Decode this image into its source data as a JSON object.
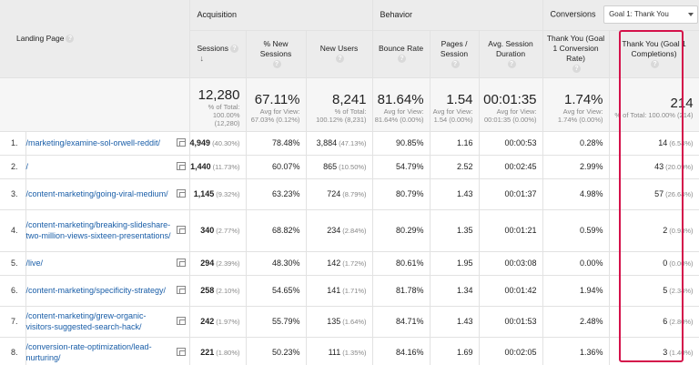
{
  "headers": {
    "landing_page": "Landing Page",
    "acquisition": "Acquisition",
    "behavior": "Behavior",
    "conversions": "Conversions",
    "goal_select": "Goal 1: Thank You",
    "sessions": "Sessions",
    "new_sessions": "% New Sessions",
    "new_users": "New Users",
    "bounce_rate": "Bounce Rate",
    "pages_session": "Pages / Session",
    "avg_duration": "Avg. Session Duration",
    "conv_rate": "Thank You (Goal 1 Conversion Rate)",
    "completions": "Thank You (Goal 1 Completions)"
  },
  "totals": {
    "sessions": "12,280",
    "sessions_sub": "% of Total: 100.00% (12,280)",
    "new_sessions": "67.11%",
    "new_sessions_sub": "Avg for View: 67.03% (0.12%)",
    "new_users": "8,241",
    "new_users_sub": "% of Total: 100.12% (8,231)",
    "bounce_rate": "81.64%",
    "bounce_rate_sub": "Avg for View: 81.64% (0.00%)",
    "pages_session": "1.54",
    "pages_session_sub": "Avg for View: 1.54 (0.00%)",
    "avg_duration": "00:01:35",
    "avg_duration_sub": "Avg for View: 00:01:35 (0.00%)",
    "conv_rate": "1.74%",
    "conv_rate_sub": "Avg for View: 1.74% (0.00%)",
    "completions": "214",
    "completions_sub": "% of Total: 100.00% (214)"
  },
  "rows": [
    {
      "idx": "1.",
      "page": "/marketing/examine-sol-orwell-reddit/",
      "sessions": "4,949",
      "sessions_pct": "(40.30%)",
      "new_sessions": "78.48%",
      "new_users": "3,884",
      "new_users_pct": "(47.13%)",
      "bounce": "90.85%",
      "pages": "1.16",
      "duration": "00:00:53",
      "conv": "0.28%",
      "comp": "14",
      "comp_pct": "(6.54%)"
    },
    {
      "idx": "2.",
      "page": "/",
      "sessions": "1,440",
      "sessions_pct": "(11.73%)",
      "new_sessions": "60.07%",
      "new_users": "865",
      "new_users_pct": "(10.50%)",
      "bounce": "54.79%",
      "pages": "2.52",
      "duration": "00:02:45",
      "conv": "2.99%",
      "comp": "43",
      "comp_pct": "(20.09%)"
    },
    {
      "idx": "3.",
      "page": "/content-marketing/going-viral-medium/",
      "sessions": "1,145",
      "sessions_pct": "(9.32%)",
      "new_sessions": "63.23%",
      "new_users": "724",
      "new_users_pct": "(8.79%)",
      "bounce": "80.79%",
      "pages": "1.43",
      "duration": "00:01:37",
      "conv": "4.98%",
      "comp": "57",
      "comp_pct": "(26.64%)"
    },
    {
      "idx": "4.",
      "page": "/content-marketing/breaking-slideshare-two-million-views-sixteen-presentations/",
      "sessions": "340",
      "sessions_pct": "(2.77%)",
      "new_sessions": "68.82%",
      "new_users": "234",
      "new_users_pct": "(2.84%)",
      "bounce": "80.29%",
      "pages": "1.35",
      "duration": "00:01:21",
      "conv": "0.59%",
      "comp": "2",
      "comp_pct": "(0.93%)"
    },
    {
      "idx": "5.",
      "page": "/live/",
      "sessions": "294",
      "sessions_pct": "(2.39%)",
      "new_sessions": "48.30%",
      "new_users": "142",
      "new_users_pct": "(1.72%)",
      "bounce": "80.61%",
      "pages": "1.95",
      "duration": "00:03:08",
      "conv": "0.00%",
      "comp": "0",
      "comp_pct": "(0.00%)"
    },
    {
      "idx": "6.",
      "page": "/content-marketing/specificity-strategy/",
      "sessions": "258",
      "sessions_pct": "(2.10%)",
      "new_sessions": "54.65%",
      "new_users": "141",
      "new_users_pct": "(1.71%)",
      "bounce": "81.78%",
      "pages": "1.34",
      "duration": "00:01:42",
      "conv": "1.94%",
      "comp": "5",
      "comp_pct": "(2.34%)"
    },
    {
      "idx": "7.",
      "page": "/content-marketing/grew-organic-visitors-suggested-search-hack/",
      "sessions": "242",
      "sessions_pct": "(1.97%)",
      "new_sessions": "55.79%",
      "new_users": "135",
      "new_users_pct": "(1.64%)",
      "bounce": "84.71%",
      "pages": "1.43",
      "duration": "00:01:53",
      "conv": "2.48%",
      "comp": "6",
      "comp_pct": "(2.80%)"
    },
    {
      "idx": "8.",
      "page": "/conversion-rate-optimization/lead-nurturing/",
      "sessions": "221",
      "sessions_pct": "(1.80%)",
      "new_sessions": "50.23%",
      "new_users": "111",
      "new_users_pct": "(1.35%)",
      "bounce": "84.16%",
      "pages": "1.69",
      "duration": "00:02:05",
      "conv": "1.36%",
      "comp": "3",
      "comp_pct": "(1.40%)"
    }
  ],
  "colors": {
    "link": "#1a5ea8",
    "highlight": "#d4114a",
    "header_bg": "#ececec"
  }
}
